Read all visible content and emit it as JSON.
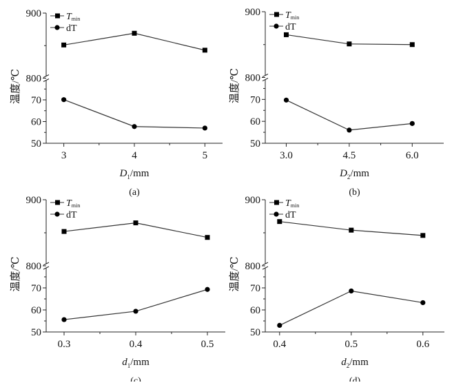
{
  "chart_data": [
    {
      "type": "line",
      "caption": "(a)",
      "xlabel_var": "D",
      "xlabel_sub": "1",
      "xlabel_unit": "/mm",
      "ylabel": "温度/℃",
      "x": [
        3,
        4,
        5
      ],
      "xticks": [
        "3",
        "4",
        "5"
      ],
      "xlim": [
        2.75,
        5.25
      ],
      "ylim_upper": [
        800,
        900
      ],
      "ylim_lower": [
        50,
        80
      ],
      "yticks": [
        "900",
        "800",
        "70",
        "60",
        "50"
      ],
      "axis_break": "800",
      "legend_position": "top-left",
      "series": [
        {
          "name": "T",
          "name_sub": "min",
          "marker": "square",
          "values": [
            851,
            869,
            843
          ]
        },
        {
          "name": "dT",
          "marker": "circle",
          "values": [
            70.1,
            57.7,
            57.0
          ]
        }
      ]
    },
    {
      "type": "line",
      "caption": "(b)",
      "xlabel_var": "D",
      "xlabel_sub": "2",
      "xlabel_unit": "/mm",
      "ylabel": "温度/℃",
      "x": [
        3.0,
        4.5,
        6.0
      ],
      "xticks": [
        "3.0",
        "4.5",
        "6.0"
      ],
      "xlim": [
        2.5,
        6.75
      ],
      "ylim_upper": [
        800,
        900
      ],
      "ylim_lower": [
        50,
        80
      ],
      "yticks": [
        "900",
        "800",
        "70",
        "60",
        "50"
      ],
      "axis_break": "800",
      "legend_position": "top-left",
      "series": [
        {
          "name": "T",
          "name_sub": "min",
          "marker": "square",
          "values": [
            865,
            851,
            850
          ]
        },
        {
          "name": "dT",
          "marker": "circle",
          "values": [
            69.7,
            56.0,
            59.0
          ]
        }
      ]
    },
    {
      "type": "line",
      "caption": "(c)",
      "xlabel_var": "d",
      "xlabel_sub": "1",
      "xlabel_unit": "/mm",
      "ylabel": "温度/℃",
      "x": [
        0.3,
        0.4,
        0.5
      ],
      "xticks": [
        "0.3",
        "0.4",
        "0.5"
      ],
      "xlim": [
        0.275,
        0.525
      ],
      "ylim_upper": [
        800,
        900
      ],
      "ylim_lower": [
        50,
        80
      ],
      "yticks": [
        "900",
        "800",
        "70",
        "60",
        "50"
      ],
      "axis_break": "800",
      "legend_position": "top-left",
      "series": [
        {
          "name": "T",
          "name_sub": "min",
          "marker": "square",
          "values": [
            852,
            865,
            843
          ]
        },
        {
          "name": "dT",
          "marker": "circle",
          "values": [
            55.6,
            59.4,
            69.3
          ]
        }
      ]
    },
    {
      "type": "line",
      "caption": "(d)",
      "xlabel_var": "d",
      "xlabel_sub": "2",
      "xlabel_unit": "/mm",
      "ylabel": "温度/℃",
      "x": [
        0.4,
        0.5,
        0.6
      ],
      "xticks": [
        "0.4",
        "0.5",
        "0.6"
      ],
      "xlim": [
        0.38,
        0.63
      ],
      "ylim_upper": [
        800,
        900
      ],
      "ylim_lower": [
        50,
        80
      ],
      "yticks": [
        "900",
        "800",
        "70",
        "60",
        "50"
      ],
      "axis_break": "800",
      "legend_position": "top-left",
      "series": [
        {
          "name": "T",
          "name_sub": "min",
          "marker": "square",
          "values": [
            867,
            854,
            846
          ]
        },
        {
          "name": "dT",
          "marker": "circle",
          "values": [
            53.0,
            68.6,
            63.3
          ]
        }
      ]
    }
  ]
}
